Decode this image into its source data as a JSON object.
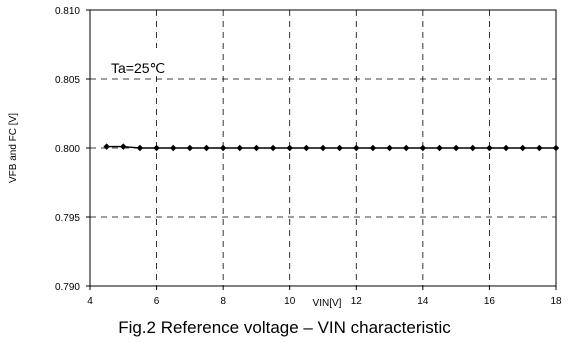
{
  "chart_data": {
    "type": "line",
    "xlabel": "VIN[V]",
    "ylabel": "VFB and FC [V]",
    "xlim": [
      4,
      18
    ],
    "ylim": [
      0.79,
      0.81
    ],
    "x_ticks": [
      4,
      6,
      8,
      10,
      12,
      14,
      16,
      18
    ],
    "y_ticks": [
      0.79,
      0.795,
      0.8,
      0.805,
      0.81
    ],
    "x_tick_labels": [
      "4",
      "6",
      "8",
      "10",
      "12",
      "14",
      "16",
      "18"
    ],
    "y_tick_labels": [
      "0.790",
      "0.795",
      "0.800",
      "0.805",
      "0.810"
    ],
    "grid": "dashed",
    "annotation": "Ta=25℃",
    "series": [
      {
        "marker": "diamond",
        "color": "#000000",
        "x": [
          4.5,
          5.0,
          5.5,
          6.0,
          6.5,
          7.0,
          7.5,
          8.0,
          8.5,
          9.0,
          9.5,
          10.0,
          10.5,
          11.0,
          11.5,
          12.0,
          12.5,
          13.0,
          13.5,
          14.0,
          14.5,
          15.0,
          15.5,
          16.0,
          16.5,
          17.0,
          17.5,
          18.0
        ],
        "y": [
          0.8001,
          0.8001,
          0.8,
          0.8,
          0.8,
          0.8,
          0.8,
          0.8,
          0.8,
          0.8,
          0.8,
          0.8,
          0.8,
          0.8,
          0.8,
          0.8,
          0.8,
          0.8,
          0.8,
          0.8,
          0.8,
          0.8,
          0.8,
          0.8,
          0.8,
          0.8,
          0.8,
          0.8
        ]
      }
    ]
  },
  "caption": "Fig.2 Reference voltage – VIN characteristic"
}
